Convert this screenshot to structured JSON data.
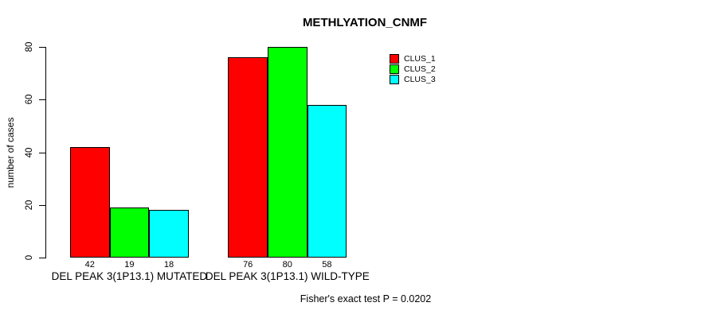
{
  "chart_data": {
    "type": "bar",
    "title": "METHLYATION_CNMF",
    "ylabel": "number of cases",
    "xlabel": "",
    "ylim": [
      0,
      80
    ],
    "yticks": [
      0,
      20,
      40,
      60,
      80
    ],
    "grid": false,
    "legend_position": "top-right",
    "categories": [
      "DEL PEAK 3(1P13.1) MUTATED",
      "DEL PEAK 3(1P13.1) WILD-TYPE"
    ],
    "series": [
      {
        "name": "CLUS_1",
        "color": "#ff0000",
        "values": [
          42,
          76
        ]
      },
      {
        "name": "CLUS_2",
        "color": "#00ff00",
        "values": [
          19,
          80
        ]
      },
      {
        "name": "CLUS_3",
        "color": "#00ffff",
        "values": [
          18,
          58
        ]
      }
    ],
    "bar_value_labels": [
      [
        42,
        19,
        18
      ],
      [
        76,
        80,
        58
      ]
    ],
    "footnote": "Fisher's exact test P = 0.0202"
  },
  "colors": {
    "background": "#ffffff",
    "axis": "#000000",
    "text": "#000000",
    "bar_border": "#000000",
    "clus_1": "#ff0000",
    "clus_2": "#00ff00",
    "clus_3": "#00ffff"
  }
}
